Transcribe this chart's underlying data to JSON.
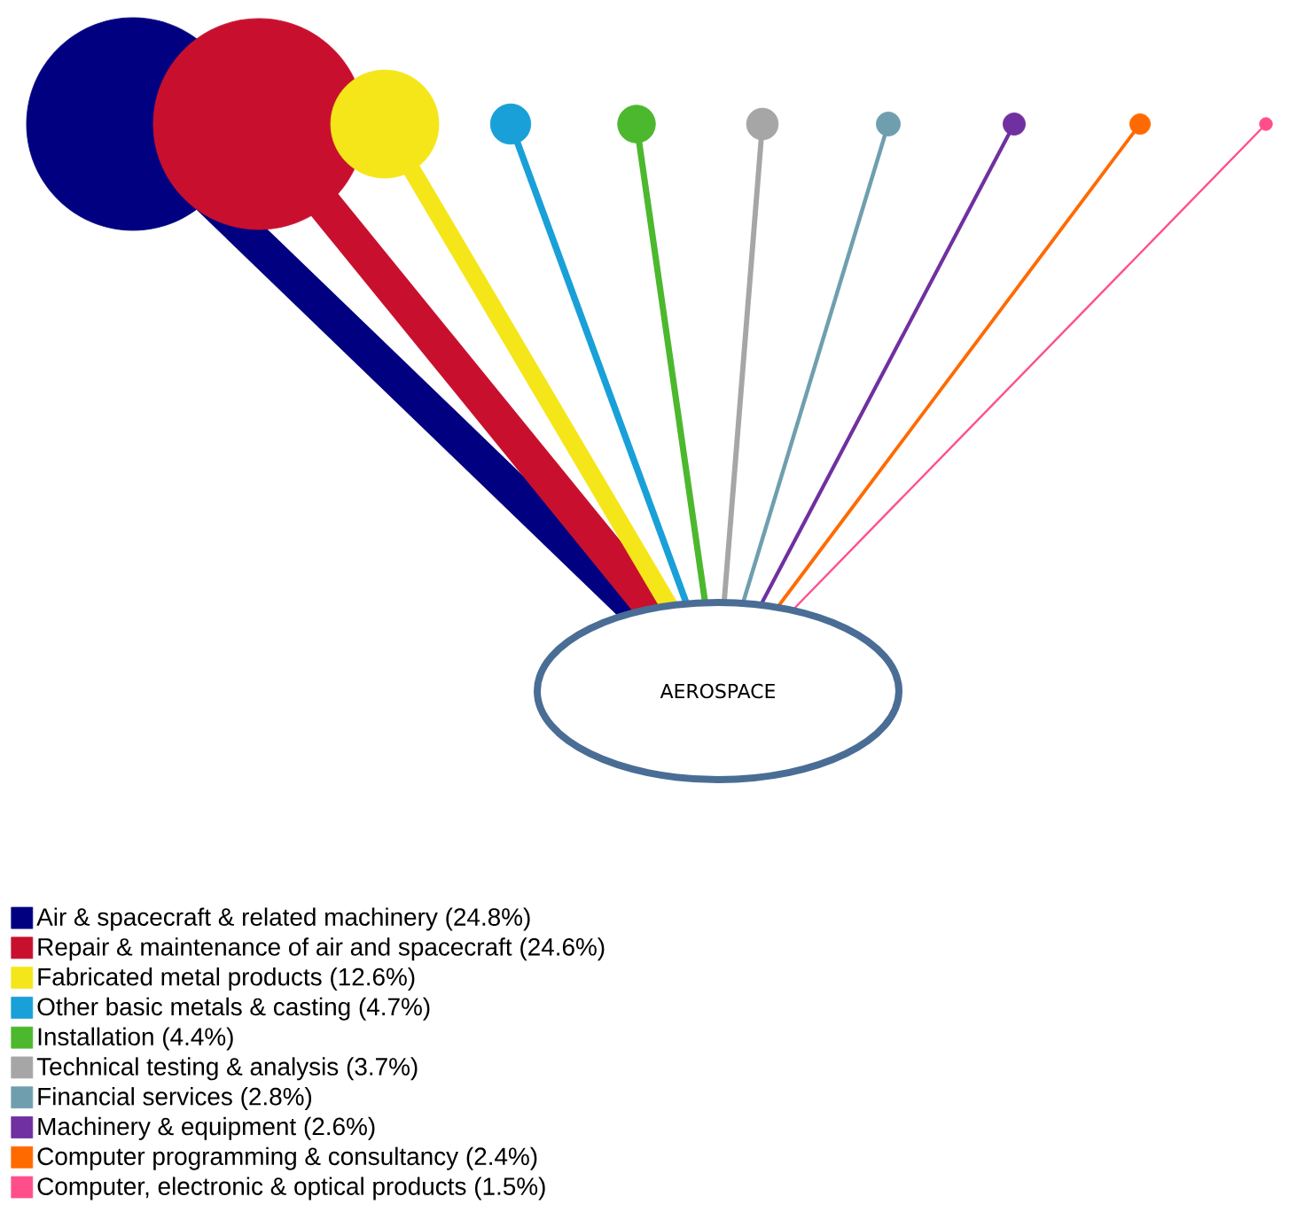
{
  "chart_data": {
    "type": "other",
    "categories": [
      "Air & spacecraft & related machinery",
      "Repair & maintenance of air and spacecraft",
      "Fabricated metal products",
      "Other basic metals & casting",
      "Installation",
      "Technical testing & analysis",
      "Financial services",
      "Machinery & equipment",
      "Computer programming & consultancy",
      "Computer, electronic & optical products"
    ],
    "values": [
      24.8,
      24.6,
      12.6,
      4.7,
      4.4,
      3.7,
      2.8,
      2.6,
      2.4,
      1.5
    ],
    "value_labels": [
      "(24.8%)",
      "(24.6%)",
      "(12.6%)",
      "(4.7%)",
      "(4.4%)",
      "(3.7%)",
      "(2.8%)",
      "(2.6%)",
      "(2.4%)",
      "(1.5%)"
    ],
    "colors": [
      "#000080",
      "#c8102e",
      "#f5e61a",
      "#1aa0d8",
      "#4cb82e",
      "#a6a6a6",
      "#6f9fae",
      "#7030a0",
      "#ff6a00",
      "#ff4f8b"
    ],
    "annotations": [
      "AEROSPACE"
    ]
  }
}
